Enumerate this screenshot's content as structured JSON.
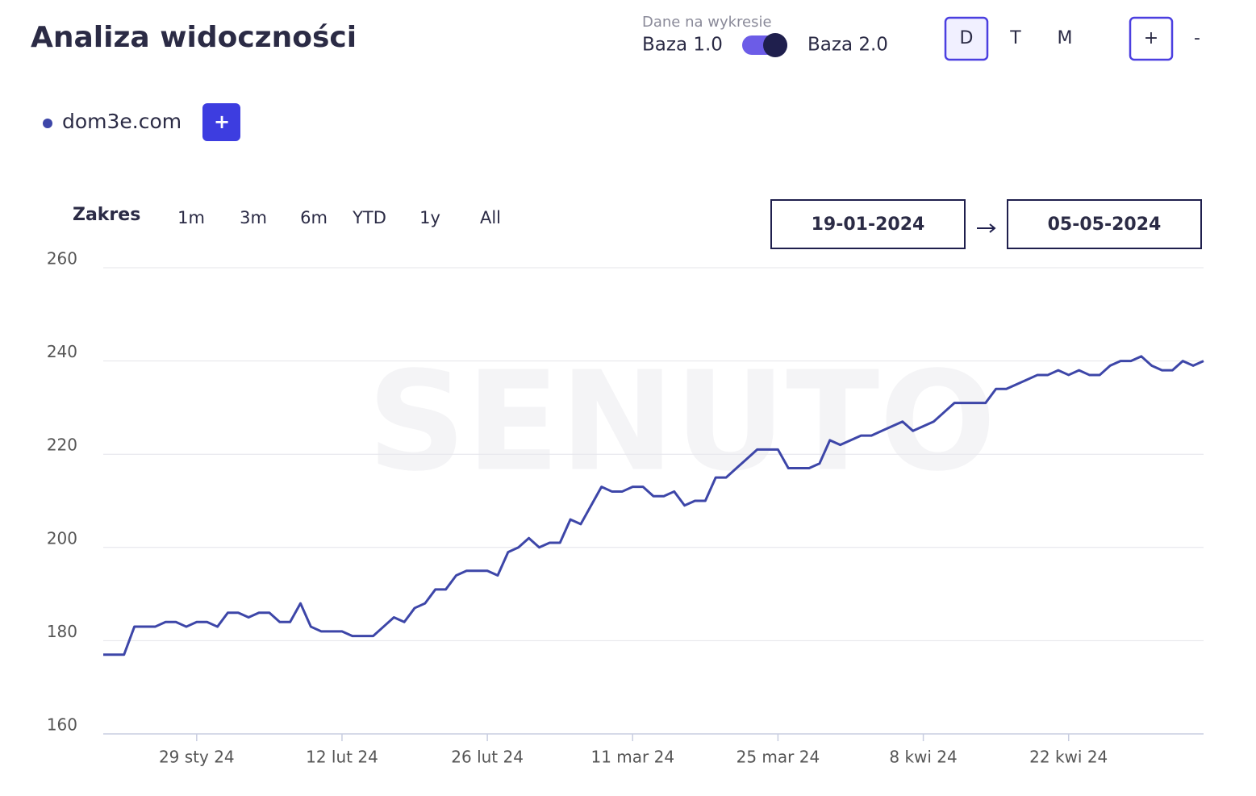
{
  "ui": {
    "title": "Analiza widoczności",
    "data_source_label": "Dane na wykresie",
    "base_left": "Baza 1.0",
    "base_right": "Baza 2.0",
    "granularity": [
      "D",
      "T",
      "M"
    ],
    "zoom": [
      "+",
      "-"
    ],
    "add_domain": "+",
    "range_label": "Zakres",
    "ranges": [
      "1m",
      "3m",
      "6m",
      "YTD",
      "1y",
      "All"
    ],
    "date_from": "19-01-2024",
    "date_to": "05-05-2024",
    "watermark": "SENUTO"
  },
  "chart_data": {
    "type": "line",
    "x": [
      "2024-01-20",
      "2024-01-21",
      "2024-01-22",
      "2024-01-23",
      "2024-01-24",
      "2024-01-25",
      "2024-01-26",
      "2024-01-27",
      "2024-01-28",
      "2024-01-29",
      "2024-01-30",
      "2024-01-31",
      "2024-02-01",
      "2024-02-02",
      "2024-02-03",
      "2024-02-04",
      "2024-02-05",
      "2024-02-06",
      "2024-02-07",
      "2024-02-08",
      "2024-02-09",
      "2024-02-10",
      "2024-02-11",
      "2024-02-12",
      "2024-02-13",
      "2024-02-14",
      "2024-02-15",
      "2024-02-16",
      "2024-02-17",
      "2024-02-18",
      "2024-02-19",
      "2024-02-20",
      "2024-02-21",
      "2024-02-22",
      "2024-02-23",
      "2024-02-24",
      "2024-02-25",
      "2024-02-26",
      "2024-02-27",
      "2024-02-28",
      "2024-02-29",
      "2024-03-01",
      "2024-03-02",
      "2024-03-03",
      "2024-03-04",
      "2024-03-05",
      "2024-03-06",
      "2024-03-07",
      "2024-03-08",
      "2024-03-09",
      "2024-03-10",
      "2024-03-11",
      "2024-03-12",
      "2024-03-13",
      "2024-03-14",
      "2024-03-15",
      "2024-03-16",
      "2024-03-17",
      "2024-03-18",
      "2024-03-19",
      "2024-03-20",
      "2024-03-21",
      "2024-03-22",
      "2024-03-23",
      "2024-03-24",
      "2024-03-25",
      "2024-03-26",
      "2024-03-27",
      "2024-03-28",
      "2024-03-29",
      "2024-03-30",
      "2024-03-31",
      "2024-04-01",
      "2024-04-02",
      "2024-04-03",
      "2024-04-04",
      "2024-04-05",
      "2024-04-06",
      "2024-04-07",
      "2024-04-08",
      "2024-04-09",
      "2024-04-10",
      "2024-04-11",
      "2024-04-12",
      "2024-04-13",
      "2024-04-14",
      "2024-04-15",
      "2024-04-16",
      "2024-04-17",
      "2024-04-18",
      "2024-04-19",
      "2024-04-20",
      "2024-04-21",
      "2024-04-22",
      "2024-04-23",
      "2024-04-24",
      "2024-04-25",
      "2024-04-26",
      "2024-04-27",
      "2024-04-28",
      "2024-04-29",
      "2024-04-30",
      "2024-05-01",
      "2024-05-02",
      "2024-05-03",
      "2024-05-04",
      "2024-05-05"
    ],
    "series": [
      {
        "name": "dom3e.com",
        "color": "#3d46a8",
        "values": [
          177,
          177,
          177,
          183,
          183,
          183,
          184,
          184,
          183,
          184,
          184,
          183,
          186,
          186,
          185,
          186,
          186,
          184,
          184,
          188,
          183,
          182,
          182,
          182,
          181,
          181,
          181,
          183,
          185,
          184,
          187,
          188,
          191,
          191,
          194,
          195,
          195,
          195,
          194,
          199,
          200,
          202,
          200,
          201,
          201,
          206,
          205,
          209,
          213,
          212,
          212,
          213,
          213,
          211,
          211,
          212,
          209,
          210,
          210,
          215,
          215,
          217,
          219,
          221,
          221,
          221,
          217,
          217,
          217,
          218,
          223,
          222,
          223,
          224,
          224,
          225,
          226,
          227,
          225,
          226,
          227,
          229,
          231,
          231,
          231,
          231,
          234,
          234,
          235,
          236,
          237,
          237,
          238,
          237,
          238,
          237,
          237,
          239,
          240,
          240,
          241,
          239,
          238,
          238,
          240,
          239,
          240
        ]
      }
    ],
    "xlim": [
      "2024-01-20",
      "2024-05-05"
    ],
    "xticks": [
      {
        "value": "2024-01-29",
        "label": "29 sty 24"
      },
      {
        "value": "2024-02-12",
        "label": "12 lut 24"
      },
      {
        "value": "2024-02-26",
        "label": "26 lut 24"
      },
      {
        "value": "2024-03-11",
        "label": "11 mar 24"
      },
      {
        "value": "2024-03-25",
        "label": "25 mar 24"
      },
      {
        "value": "2024-04-08",
        "label": "8 kwi 24"
      },
      {
        "value": "2024-04-22",
        "label": "22 kwi 24"
      }
    ],
    "ylim": [
      160,
      260
    ],
    "yticks": [
      160,
      180,
      200,
      220,
      240,
      260
    ],
    "grid": true
  }
}
